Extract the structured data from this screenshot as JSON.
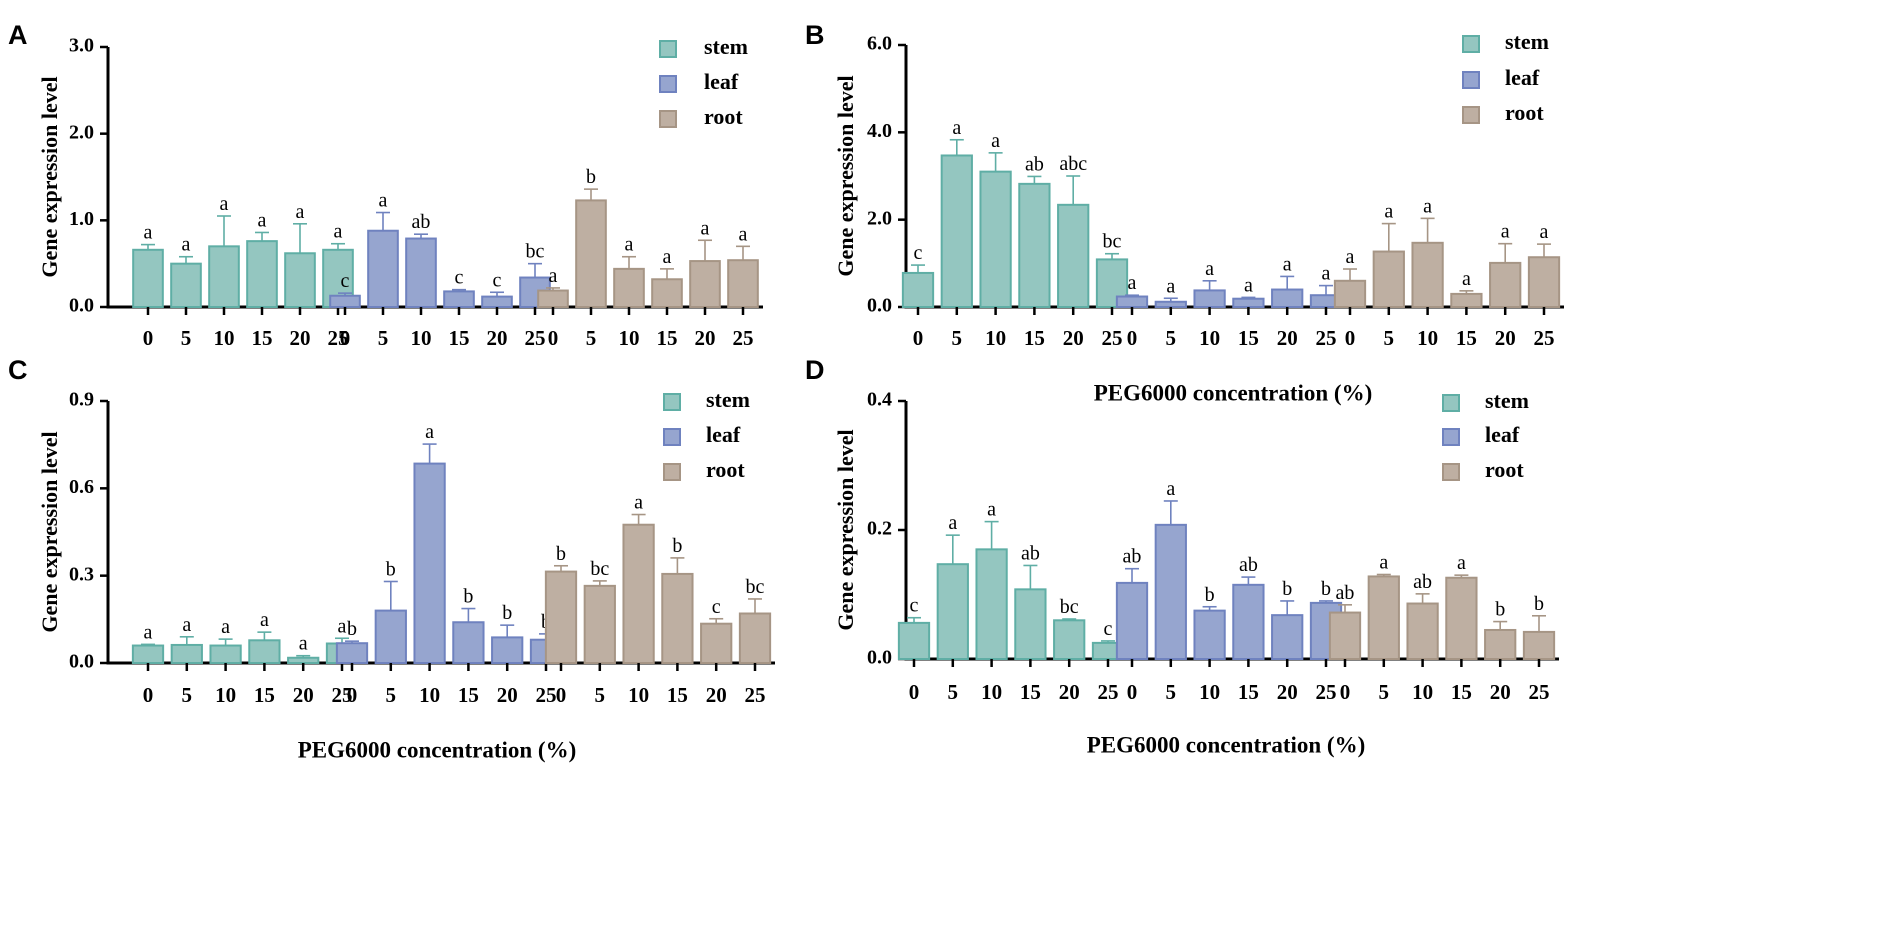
{
  "colors": {
    "stem": "#94C6C0",
    "stem_edge": "#5FAEA5",
    "leaf": "#96A5CF",
    "leaf_edge": "#6F82BF",
    "root": "#BEAFA2",
    "root_edge": "#A69585"
  },
  "chart_data": [
    {
      "panel": "A",
      "type": "bar",
      "ylabel": "Gene expression level",
      "xlabel": "",
      "ylim": [
        0,
        3.0
      ],
      "yticks": [
        "0.0",
        "1.0",
        "2.0",
        "3.0"
      ],
      "categories": [
        "0",
        "5",
        "10",
        "15",
        "20",
        "25"
      ],
      "legend": [
        "stem",
        "leaf",
        "root"
      ],
      "legend_position": "top-right",
      "series": [
        {
          "name": "stem",
          "values": [
            0.66,
            0.5,
            0.7,
            0.76,
            0.62,
            0.66
          ],
          "errors": [
            0.06,
            0.08,
            0.35,
            0.1,
            0.34,
            0.07
          ],
          "letters": [
            "a",
            "a",
            "a",
            "a",
            "a",
            "a"
          ]
        },
        {
          "name": "leaf",
          "values": [
            0.13,
            0.88,
            0.79,
            0.18,
            0.12,
            0.34
          ],
          "errors": [
            0.03,
            0.21,
            0.05,
            0.02,
            0.05,
            0.16
          ],
          "letters": [
            "c",
            "a",
            "ab",
            "c",
            "c",
            "bc"
          ]
        },
        {
          "name": "root",
          "values": [
            0.19,
            1.23,
            0.44,
            0.32,
            0.53,
            0.54
          ],
          "errors": [
            0.03,
            0.13,
            0.14,
            0.12,
            0.24,
            0.16
          ],
          "letters": [
            "a",
            "b",
            "a",
            "a",
            "a",
            "a"
          ]
        }
      ]
    },
    {
      "panel": "B",
      "type": "bar",
      "ylabel": "Gene expression level",
      "xlabel": "PEG6000 concentration (%)",
      "ylim": [
        0,
        6.0
      ],
      "yticks": [
        "0.0",
        "2.0",
        "4.0",
        "6.0"
      ],
      "categories": [
        "0",
        "5",
        "10",
        "15",
        "20",
        "25"
      ],
      "legend": [
        "stem",
        "leaf",
        "root"
      ],
      "legend_position": "top-right",
      "series": [
        {
          "name": "stem",
          "values": [
            0.78,
            3.47,
            3.1,
            2.82,
            2.34,
            1.09
          ],
          "errors": [
            0.18,
            0.36,
            0.43,
            0.17,
            0.66,
            0.13
          ],
          "letters": [
            "c",
            "a",
            "a",
            "ab",
            "abc",
            "bc"
          ]
        },
        {
          "name": "leaf",
          "values": [
            0.24,
            0.12,
            0.38,
            0.19,
            0.4,
            0.27
          ],
          "errors": [
            0.03,
            0.08,
            0.22,
            0.03,
            0.3,
            0.22
          ],
          "letters": [
            "a",
            "a",
            "a",
            "a",
            "a",
            "a"
          ]
        },
        {
          "name": "root",
          "values": [
            0.6,
            1.27,
            1.47,
            0.3,
            1.01,
            1.14
          ],
          "errors": [
            0.27,
            0.64,
            0.56,
            0.07,
            0.44,
            0.3
          ],
          "letters": [
            "a",
            "a",
            "a",
            "a",
            "a",
            "a"
          ]
        }
      ]
    },
    {
      "panel": "C",
      "type": "bar",
      "ylabel": "Gene expression level",
      "xlabel": "PEG6000 concentration (%)",
      "ylim": [
        0,
        0.9
      ],
      "yticks": [
        "0.0",
        "0.3",
        "0.6",
        "0.9"
      ],
      "categories": [
        "0",
        "5",
        "10",
        "15",
        "20",
        "25"
      ],
      "legend": [
        "stem",
        "leaf",
        "root"
      ],
      "legend_position": "top-right",
      "series": [
        {
          "name": "stem",
          "values": [
            0.06,
            0.062,
            0.06,
            0.078,
            0.018,
            0.067
          ],
          "errors": [
            0.004,
            0.028,
            0.022,
            0.028,
            0.007,
            0.018
          ],
          "letters": [
            "a",
            "a",
            "a",
            "a",
            "a",
            "a"
          ]
        },
        {
          "name": "leaf",
          "values": [
            0.068,
            0.18,
            0.685,
            0.14,
            0.088,
            0.08
          ],
          "errors": [
            0.007,
            0.1,
            0.067,
            0.047,
            0.042,
            0.02
          ],
          "letters": [
            "b",
            "b",
            "a",
            "b",
            "b",
            "b"
          ]
        },
        {
          "name": "root",
          "values": [
            0.314,
            0.265,
            0.475,
            0.306,
            0.135,
            0.17
          ],
          "errors": [
            0.02,
            0.017,
            0.035,
            0.055,
            0.017,
            0.05
          ],
          "letters": [
            "b",
            "bc",
            "a",
            "b",
            "c",
            "bc"
          ]
        }
      ]
    },
    {
      "panel": "D",
      "type": "bar",
      "ylabel": "Gene expression level",
      "xlabel": "PEG6000 concentration (%)",
      "ylim": [
        0,
        0.4
      ],
      "yticks": [
        "0.0",
        "0.2",
        "0.4"
      ],
      "categories": [
        "0",
        "5",
        "10",
        "15",
        "20",
        "25"
      ],
      "legend": [
        "stem",
        "leaf",
        "root"
      ],
      "legend_position": "top-right",
      "series": [
        {
          "name": "stem",
          "values": [
            0.056,
            0.147,
            0.17,
            0.108,
            0.06,
            0.025
          ],
          "errors": [
            0.008,
            0.045,
            0.043,
            0.037,
            0.002,
            0.003
          ],
          "letters": [
            "c",
            "a",
            "a",
            "ab",
            "bc",
            "c"
          ]
        },
        {
          "name": "leaf",
          "values": [
            0.118,
            0.208,
            0.075,
            0.115,
            0.068,
            0.087
          ],
          "errors": [
            0.022,
            0.037,
            0.006,
            0.012,
            0.022,
            0.003
          ],
          "letters": [
            "ab",
            "a",
            "b",
            "ab",
            "b",
            "b"
          ]
        },
        {
          "name": "root",
          "values": [
            0.072,
            0.128,
            0.086,
            0.126,
            0.045,
            0.042
          ],
          "errors": [
            0.012,
            0.003,
            0.015,
            0.004,
            0.013,
            0.025
          ],
          "letters": [
            "ab",
            "a",
            "ab",
            "a",
            "b",
            "b"
          ]
        }
      ]
    }
  ]
}
